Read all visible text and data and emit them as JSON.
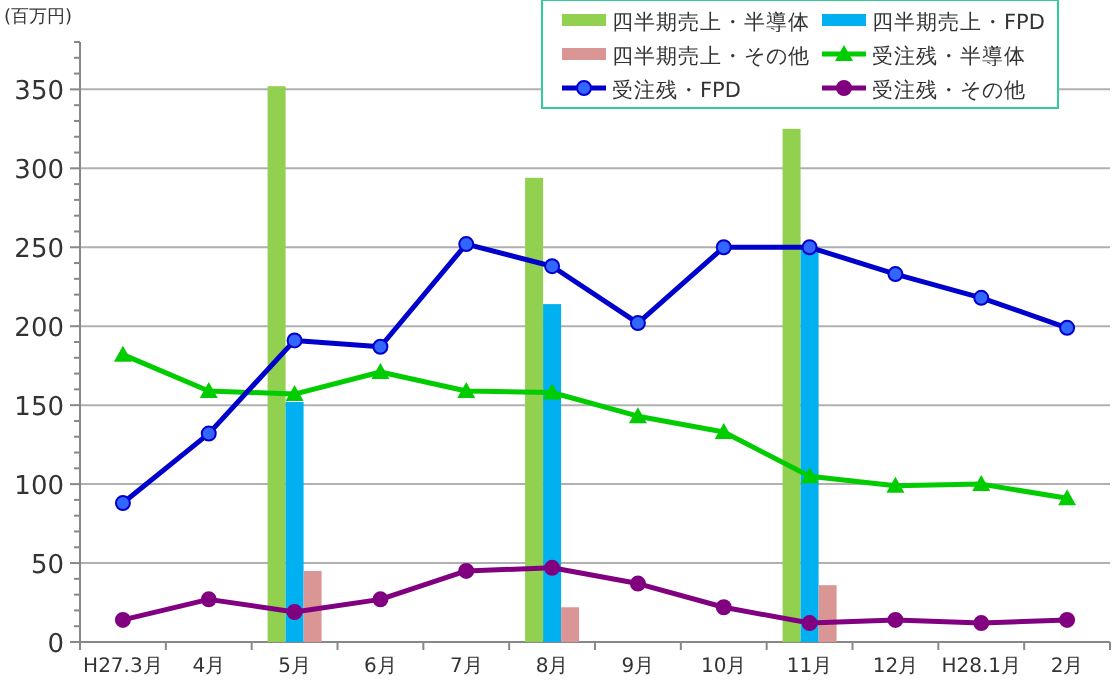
{
  "chart_data": {
    "type": "bar",
    "ylabel": "(百万円)",
    "categories": [
      "H27.3月",
      "4月",
      "5月",
      "6月",
      "7月",
      "8月",
      "9月",
      "10月",
      "11月",
      "12月",
      "H28.1月",
      "2月"
    ],
    "ylim": [
      0,
      380
    ],
    "yticks": [
      0,
      {
        "value": 10,
        "label": null
      },
      {
        "value": 20,
        "label": null
      },
      {
        "value": 30,
        "label": null
      },
      {
        "value": 40,
        "label": null
      },
      50,
      {
        "value": 60,
        "label": null
      },
      {
        "value": 70,
        "label": null
      },
      {
        "value": 80,
        "label": null
      },
      {
        "value": 90,
        "label": null
      },
      100,
      {
        "value": 110,
        "label": null
      },
      {
        "value": 120,
        "label": null
      },
      {
        "value": 130,
        "label": null
      },
      {
        "value": 140,
        "label": null
      },
      150,
      {
        "value": 160,
        "label": null
      },
      {
        "value": 170,
        "label": null
      },
      {
        "value": 180,
        "label": null
      },
      {
        "value": 190,
        "label": null
      },
      200,
      {
        "value": 210,
        "label": null
      },
      {
        "value": 220,
        "label": null
      },
      {
        "value": 230,
        "label": null
      },
      {
        "value": 240,
        "label": null
      },
      250,
      {
        "value": 260,
        "label": null
      },
      {
        "value": 270,
        "label": null
      },
      {
        "value": 280,
        "label": null
      },
      {
        "value": 290,
        "label": null
      },
      300,
      {
        "value": 310,
        "label": null
      },
      {
        "value": 320,
        "label": null
      },
      {
        "value": 330,
        "label": null
      },
      {
        "value": 340,
        "label": null
      },
      350,
      {
        "value": 360,
        "label": null
      },
      {
        "value": 370,
        "label": null
      },
      {
        "value": 380,
        "label": null
      }
    ],
    "grid": "y",
    "legend": "top right",
    "series": [
      {
        "name": "四半期売上・半導体",
        "color": "#92d050",
        "values": [
          null,
          null,
          352,
          null,
          null,
          294,
          null,
          null,
          325,
          null,
          null,
          null
        ]
      },
      {
        "name": "四半期売上・FPD",
        "color": "#00b0f0",
        "values": [
          null,
          null,
          152,
          null,
          null,
          214,
          null,
          null,
          250,
          null,
          null,
          null
        ]
      },
      {
        "name": "四半期売上・その他",
        "color": "#da9694",
        "values": [
          null,
          null,
          45,
          null,
          null,
          22,
          null,
          null,
          36,
          null,
          null,
          null
        ]
      },
      {
        "name": "受注残・半導体",
        "type": "line",
        "marker": "triangle",
        "color": "#00cc00",
        "values": [
          182,
          159,
          157,
          171,
          159,
          158,
          143,
          133,
          105,
          99,
          100,
          91
        ]
      },
      {
        "name": "受注残・FPD",
        "type": "line",
        "marker": "circle",
        "color": "#0000cc",
        "values": [
          88,
          132,
          191,
          187,
          252,
          238,
          202,
          250,
          250,
          233,
          218,
          199
        ]
      },
      {
        "name": "受注残・その他",
        "type": "line",
        "marker": "circle",
        "color": "#800080",
        "values": [
          14,
          27,
          19,
          27,
          45,
          47,
          37,
          22,
          12,
          14,
          12,
          14
        ]
      }
    ]
  }
}
